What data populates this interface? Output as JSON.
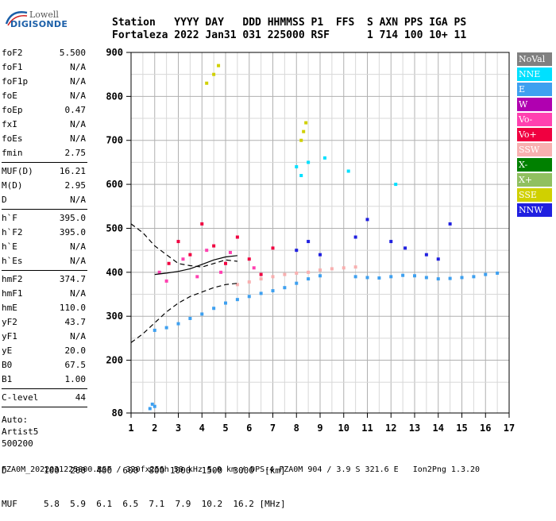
{
  "logo": {
    "line1": "Lowell",
    "line2": "DIGISONDE"
  },
  "header": {
    "labels": [
      "Station",
      "YYYY",
      "DAY",
      "DDD",
      "HHMMSS",
      "P1",
      "FFS",
      "S",
      "AXN",
      "PPS",
      "IGA",
      "PS"
    ],
    "values": [
      "Fortaleza",
      "2022",
      "Jan31",
      "031",
      "225000",
      "RSF",
      "",
      "1",
      "714",
      "100",
      "10+",
      "11"
    ]
  },
  "params": {
    "group1": [
      {
        "name": "foF2",
        "value": "5.500"
      },
      {
        "name": "foF1",
        "value": "N/A"
      },
      {
        "name": "foF1p",
        "value": "N/A"
      },
      {
        "name": "foE",
        "value": "N/A"
      },
      {
        "name": "foEp",
        "value": "0.47"
      },
      {
        "name": "fxI",
        "value": "N/A"
      },
      {
        "name": "foEs",
        "value": "N/A"
      },
      {
        "name": "fmin",
        "value": "2.75"
      }
    ],
    "group2": [
      {
        "name": "MUF(D)",
        "value": "16.21"
      },
      {
        "name": "M(D)",
        "value": "2.95"
      },
      {
        "name": "D",
        "value": "N/A"
      }
    ],
    "group3": [
      {
        "name": "h`F",
        "value": "395.0"
      },
      {
        "name": "h`F2",
        "value": "395.0"
      },
      {
        "name": "h`E",
        "value": "N/A"
      },
      {
        "name": "h`Es",
        "value": "N/A"
      }
    ],
    "group4": [
      {
        "name": "hmF2",
        "value": "374.7"
      },
      {
        "name": "hmF1",
        "value": "N/A"
      },
      {
        "name": "hmE",
        "value": "110.0"
      },
      {
        "name": "yF2",
        "value": "43.7"
      },
      {
        "name": "yF1",
        "value": "N/A"
      },
      {
        "name": "yE",
        "value": "20.0"
      },
      {
        "name": "B0",
        "value": "67.5"
      },
      {
        "name": "B1",
        "value": "1.00"
      }
    ],
    "group5": [
      {
        "name": "C-level",
        "value": "44"
      }
    ],
    "auto": [
      "Auto:",
      "Artist5",
      "500200"
    ]
  },
  "legend": [
    {
      "label": "NoVal",
      "color": "#808080"
    },
    {
      "label": "NNE",
      "color": "#00e0ff"
    },
    {
      "label": "E",
      "color": "#3ea0f0"
    },
    {
      "label": "W",
      "color": "#b000b0"
    },
    {
      "label": "Vo-",
      "color": "#ff40b0"
    },
    {
      "label": "Vo+",
      "color": "#f00040"
    },
    {
      "label": "SSW",
      "color": "#f8b0b0"
    },
    {
      "label": "X-",
      "color": "#008000"
    },
    {
      "label": "X+",
      "color": "#90c060"
    },
    {
      "label": "SSE",
      "color": "#d0d000"
    },
    {
      "label": "NNW",
      "color": "#2020e0"
    }
  ],
  "bottom": {
    "d_label": "D",
    "d_values": [
      "100",
      "200",
      "400",
      "600",
      "800",
      "1000",
      "1500",
      "3000",
      "[km]"
    ],
    "muf_label": "MUF",
    "muf_values": [
      "5.8",
      "5.9",
      "6.1",
      "6.5",
      "7.1",
      "7.9",
      "10.2",
      "16.2",
      "[MHz]"
    ]
  },
  "footer": "FZA0M_2022031225000.RSF / 320fx256h 50 kHz 5.0 km / DPS-4 FZA0M 904 / 3.9 S 321.6 E   Ion2Png 1.3.20",
  "chart_data": {
    "type": "scatter",
    "title": "",
    "xlabel": "",
    "ylabel": "",
    "xlim": [
      1,
      17
    ],
    "ylim": [
      80,
      900
    ],
    "x_ticks": [
      1,
      2,
      3,
      4,
      5,
      6,
      7,
      8,
      9,
      10,
      11,
      12,
      13,
      14,
      15,
      16,
      17
    ],
    "y_ticks": [
      80,
      200,
      300,
      400,
      500,
      600,
      700,
      800,
      900
    ],
    "grid": true,
    "legend_placement": "right",
    "series": [
      {
        "name": "E",
        "description": "O-trace rising",
        "color": "#3ea0f0",
        "points": [
          [
            2.0,
            268
          ],
          [
            2.5,
            274
          ],
          [
            3.0,
            283
          ],
          [
            3.5,
            295
          ],
          [
            4.0,
            305
          ],
          [
            4.5,
            318
          ],
          [
            5.0,
            330
          ],
          [
            5.5,
            338
          ],
          [
            6.0,
            345
          ],
          [
            6.5,
            352
          ],
          [
            7.0,
            358
          ],
          [
            7.5,
            365
          ],
          [
            8.0,
            375
          ],
          [
            8.5,
            385
          ],
          [
            9.0,
            392
          ]
        ]
      },
      {
        "name": "E",
        "description": "F2 flat trace",
        "color": "#3ea0f0",
        "points": [
          [
            10.5,
            390
          ],
          [
            11.0,
            388
          ],
          [
            11.5,
            387
          ],
          [
            12.0,
            390
          ],
          [
            12.5,
            393
          ],
          [
            13.0,
            392
          ],
          [
            13.5,
            388
          ],
          [
            14.0,
            385
          ],
          [
            14.5,
            386
          ],
          [
            15.0,
            388
          ],
          [
            15.5,
            390
          ],
          [
            16.0,
            395
          ],
          [
            16.5,
            398
          ]
        ]
      },
      {
        "name": "SSW",
        "description": "oblique band",
        "color": "#f8b0b0",
        "points": [
          [
            5.5,
            372
          ],
          [
            6.0,
            378
          ],
          [
            6.5,
            385
          ],
          [
            7.0,
            390
          ],
          [
            7.5,
            395
          ],
          [
            8.0,
            398
          ],
          [
            8.5,
            400
          ],
          [
            9.0,
            405
          ],
          [
            9.5,
            408
          ],
          [
            10.0,
            410
          ],
          [
            10.5,
            412
          ]
        ]
      },
      {
        "name": "NNW",
        "description": "scattered spread-F",
        "color": "#2020e0",
        "points": [
          [
            8.0,
            450
          ],
          [
            8.5,
            470
          ],
          [
            9.0,
            440
          ],
          [
            10.5,
            480
          ],
          [
            11.0,
            520
          ],
          [
            12.0,
            470
          ],
          [
            12.6,
            455
          ],
          [
            13.5,
            440
          ],
          [
            14.0,
            430
          ],
          [
            14.5,
            510
          ]
        ]
      },
      {
        "name": "Vo+",
        "description": "spread-F cluster",
        "color": "#f00040",
        "points": [
          [
            2.6,
            420
          ],
          [
            3.0,
            470
          ],
          [
            3.5,
            440
          ],
          [
            4.0,
            510
          ],
          [
            4.5,
            460
          ],
          [
            5.0,
            420
          ],
          [
            5.5,
            480
          ],
          [
            6.0,
            430
          ],
          [
            6.5,
            395
          ],
          [
            7.0,
            455
          ]
        ]
      },
      {
        "name": "Vo-",
        "description": "spread-F cluster",
        "color": "#ff40b0",
        "points": [
          [
            2.2,
            400
          ],
          [
            2.5,
            380
          ],
          [
            3.2,
            430
          ],
          [
            3.8,
            390
          ],
          [
            4.2,
            450
          ],
          [
            4.8,
            400
          ],
          [
            5.2,
            445
          ],
          [
            6.2,
            410
          ]
        ]
      },
      {
        "name": "SSE",
        "description": "high-altitude echoes",
        "color": "#d0d000",
        "points": [
          [
            4.2,
            830
          ],
          [
            4.5,
            850
          ],
          [
            4.7,
            870
          ],
          [
            8.2,
            700
          ],
          [
            8.3,
            720
          ],
          [
            8.4,
            740
          ]
        ]
      },
      {
        "name": "NNE",
        "description": "high echoes",
        "color": "#00e0ff",
        "points": [
          [
            8.0,
            640
          ],
          [
            8.2,
            620
          ],
          [
            8.5,
            650
          ],
          [
            9.2,
            660
          ],
          [
            10.2,
            630
          ],
          [
            12.2,
            600
          ]
        ]
      },
      {
        "name": "E",
        "description": "low echoes near 2 MHz",
        "color": "#3ea0f0",
        "points": [
          [
            1.8,
            90
          ],
          [
            1.9,
            100
          ],
          [
            2.0,
            95
          ]
        ]
      }
    ],
    "profile_curves": [
      {
        "description": "dashed model profile",
        "points": [
          [
            1.0,
            510
          ],
          [
            1.5,
            490
          ],
          [
            2.0,
            460
          ],
          [
            2.5,
            440
          ],
          [
            3.0,
            420
          ],
          [
            3.5,
            415
          ],
          [
            4.0,
            412
          ],
          [
            4.5,
            420
          ],
          [
            5.0,
            428
          ],
          [
            5.5,
            425
          ]
        ]
      },
      {
        "description": "dashed model profile lower",
        "points": [
          [
            1.0,
            240
          ],
          [
            1.5,
            260
          ],
          [
            2.0,
            285
          ],
          [
            2.5,
            310
          ],
          [
            3.0,
            330
          ],
          [
            3.5,
            345
          ],
          [
            4.0,
            355
          ],
          [
            4.5,
            365
          ],
          [
            5.0,
            372
          ],
          [
            5.5,
            375
          ]
        ]
      },
      {
        "description": "solid profile",
        "points": [
          [
            2.0,
            395
          ],
          [
            2.5,
            398
          ],
          [
            3.0,
            402
          ],
          [
            3.5,
            408
          ],
          [
            4.0,
            418
          ],
          [
            4.5,
            428
          ],
          [
            5.0,
            435
          ],
          [
            5.5,
            438
          ]
        ]
      }
    ]
  }
}
